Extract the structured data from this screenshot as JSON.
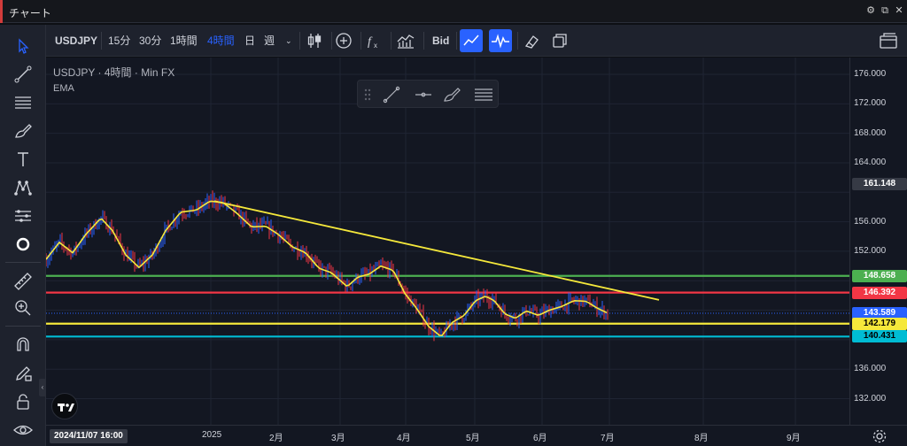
{
  "window": {
    "title": "チャート"
  },
  "toolbar": {
    "symbol": "USDJPY",
    "intervals": [
      "15分",
      "30分",
      "1時間",
      "4時間",
      "日",
      "週"
    ],
    "active_interval": "4時間",
    "bid_label": "Bid"
  },
  "legend": {
    "symbol": "USDJPY",
    "interval": "4時間",
    "source": "Min FX",
    "indicator": "EMA"
  },
  "price_axis": {
    "ticks": [
      "176.000",
      "172.000",
      "168.000",
      "164.000",
      "156.000",
      "152.000",
      "136.000",
      "132.000"
    ]
  },
  "price_badges": [
    {
      "label": "161.148",
      "color": "#363a45",
      "text_color": "#ffffff"
    },
    {
      "label": "148.658",
      "color": "#4caf50",
      "text_color": "#ffffff"
    },
    {
      "label": "146.392",
      "color": "#f23645",
      "text_color": "#ffffff"
    },
    {
      "label": "143.589",
      "color": "#2962ff",
      "text_color": "#ffffff"
    },
    {
      "label": "142.179",
      "color": "#f5e83b",
      "text_color": "#000000"
    },
    {
      "label": "140.431",
      "color": "#00bcd4",
      "text_color": "#000000"
    }
  ],
  "time_axis": {
    "cursor_label": "2024/11/07  16:00",
    "ticks": [
      "2025",
      "2月",
      "3月",
      "4月",
      "5月",
      "6月",
      "7月",
      "8月",
      "9月"
    ]
  },
  "colors": {
    "background": "#131722",
    "ema": "#f5e83b",
    "trendline": "#f5e83b",
    "line_green": "#4caf50",
    "line_red": "#f23645",
    "line_yellow": "#f5e83b",
    "line_cyan": "#00bcd4",
    "accent": "#2962ff"
  }
}
